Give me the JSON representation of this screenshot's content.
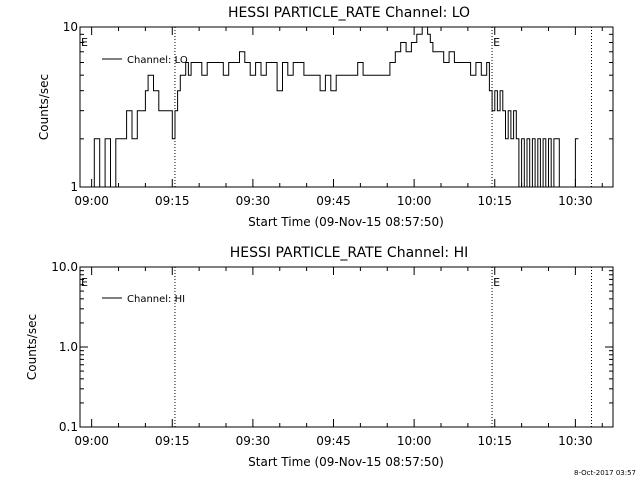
{
  "chart_data": [
    {
      "type": "line",
      "title": "HESSI PARTICLE_RATE Channel: LO",
      "xlabel": "Start Time (09-Nov-15 08:57:50)",
      "ylabel": "Counts/sec",
      "yscale": "log",
      "xlim": [
        "08:57:50",
        "10:37:00"
      ],
      "ylim": [
        1,
        10
      ],
      "x_tick_labels": [
        "09:00",
        "09:15",
        "09:30",
        "09:45",
        "10:00",
        "10:15",
        "10:30"
      ],
      "y_tick_labels": [
        "1",
        "10"
      ],
      "legend_placement": "top-left",
      "series": [
        {
          "name": "Channel: LO",
          "x": [
            "08:59:30",
            "09:00:30",
            "09:01:30",
            "09:02:30",
            "09:03:30",
            "09:04:30",
            "09:05:30",
            "09:06:30",
            "09:07:30",
            "09:08:30",
            "09:09:30",
            "09:10:00",
            "09:10:30",
            "09:11:30",
            "09:12:30",
            "09:13:30",
            "09:14:30",
            "09:15:00",
            "09:15:30",
            "09:16:00",
            "09:16:30",
            "09:17:00",
            "09:17:30",
            "09:18:00",
            "09:18:30",
            "09:19:30",
            "09:20:30",
            "09:21:30",
            "09:22:30",
            "09:23:30",
            "09:24:30",
            "09:25:30",
            "09:26:30",
            "09:27:30",
            "09:28:30",
            "09:29:30",
            "09:30:30",
            "09:31:30",
            "09:32:30",
            "09:33:30",
            "09:34:30",
            "09:35:30",
            "09:36:30",
            "09:37:30",
            "09:38:30",
            "09:39:30",
            "09:40:30",
            "09:41:30",
            "09:42:30",
            "09:43:30",
            "09:44:30",
            "09:45:30",
            "09:46:30",
            "09:47:30",
            "09:48:30",
            "09:49:30",
            "09:50:30",
            "09:51:30",
            "09:52:30",
            "09:53:30",
            "09:54:30",
            "09:55:30",
            "09:56:30",
            "09:57:30",
            "09:58:30",
            "09:59:30",
            "10:00:30",
            "10:01:30",
            "10:02:30",
            "10:03:00",
            "10:03:30",
            "10:04:30",
            "10:05:30",
            "10:06:30",
            "10:07:30",
            "10:08:30",
            "10:09:30",
            "10:10:30",
            "10:11:30",
            "10:12:30",
            "10:13:30",
            "10:14:00",
            "10:14:30",
            "10:15:00",
            "10:15:30",
            "10:16:00",
            "10:16:30",
            "10:17:00",
            "10:17:30",
            "10:18:00",
            "10:18:30",
            "10:19:00",
            "10:19:30",
            "10:20:00",
            "10:20:30",
            "10:21:00",
            "10:21:30",
            "10:22:00",
            "10:22:30",
            "10:23:00",
            "10:23:30",
            "10:24:00",
            "10:24:30",
            "10:25:00",
            "10:25:30",
            "10:26:00",
            "10:27:00",
            "10:29:00",
            "10:30:00"
          ],
          "y": [
            1,
            2,
            1,
            2,
            1,
            2,
            2,
            3,
            2,
            3,
            3,
            4,
            5,
            4,
            3,
            3,
            3,
            2,
            3,
            4,
            5,
            5,
            6,
            5,
            6,
            6,
            5,
            6,
            6,
            6,
            5,
            6,
            6,
            7,
            6,
            5,
            6,
            5,
            6,
            6,
            4,
            6,
            5,
            6,
            6,
            5,
            5,
            5,
            4,
            5,
            4,
            5,
            5,
            5,
            5,
            6,
            5,
            5,
            5,
            5,
            5,
            6,
            7,
            8,
            7,
            8,
            9,
            10,
            9,
            8,
            7,
            7,
            6,
            7,
            6,
            6,
            6,
            5,
            6,
            5,
            6,
            4,
            3,
            4,
            3,
            4,
            3,
            2,
            3,
            2,
            3,
            2,
            1,
            2,
            1,
            2,
            1,
            2,
            1,
            2,
            1,
            2,
            1,
            2,
            1,
            2,
            1,
            1,
            2
          ]
        }
      ],
      "annotations": [
        {
          "text": "E",
          "x": "08:57:50"
        },
        {
          "text": "E",
          "x": "10:14:30"
        }
      ],
      "vertical_dotted_lines": [
        "09:15:30",
        "10:14:30",
        "10:33:00"
      ]
    },
    {
      "type": "line",
      "title": "HESSI PARTICLE_RATE Channel: HI",
      "xlabel": "Start Time (09-Nov-15 08:57:50)",
      "ylabel": "Counts/sec",
      "yscale": "log",
      "xlim": [
        "08:57:50",
        "10:37:00"
      ],
      "ylim": [
        0.1,
        10
      ],
      "x_tick_labels": [
        "09:00",
        "09:15",
        "09:30",
        "09:45",
        "10:00",
        "10:15",
        "10:30"
      ],
      "y_tick_labels": [
        "0.1",
        "1.0",
        "10.0"
      ],
      "legend_placement": "top-left",
      "series": [
        {
          "name": "Channel: HI",
          "x": [],
          "y": []
        }
      ],
      "annotations": [
        {
          "text": "E",
          "x": "08:57:50"
        },
        {
          "text": "E",
          "x": "10:14:30"
        }
      ],
      "vertical_dotted_lines": [
        "09:15:30",
        "10:14:30",
        "10:33:00"
      ]
    }
  ],
  "footer": {
    "timestamp": "8-Oct-2017 03:57"
  }
}
